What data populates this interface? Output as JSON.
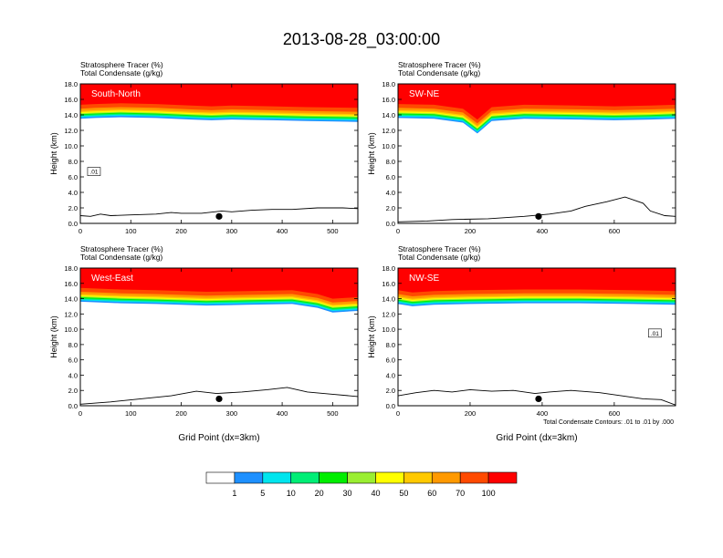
{
  "title": "2013-08-28_03:00:00",
  "chart_data": [
    {
      "type": "heatmap",
      "panel_label": "South-North",
      "subtitle_line1": "Stratosphere Tracer   (%)",
      "subtitle_line2": "Total Condensate   (g/kg)",
      "ylabel": "Height (km)",
      "xlabel": "",
      "xlim": [
        0,
        550
      ],
      "ylim": [
        0,
        18
      ],
      "xticks": [
        "0",
        "100",
        "200",
        "300",
        "400",
        "500"
      ],
      "xtick_values": [
        0,
        100,
        200,
        300,
        400,
        500
      ],
      "yticks": [
        "0.0",
        "2.0",
        "4.0",
        "6.0",
        "8.0",
        "10.0",
        "12.0",
        "14.0",
        "16.0",
        "18.0"
      ],
      "ytick_values": [
        0,
        2,
        4,
        6,
        8,
        10,
        12,
        14,
        16,
        18
      ],
      "marker_x": 275,
      "contour_label": ".01",
      "tracer_base_km": [
        [
          0,
          13.5
        ],
        [
          30,
          13.6
        ],
        [
          80,
          13.7
        ],
        [
          150,
          13.6
        ],
        [
          220,
          13.4
        ],
        [
          260,
          13.3
        ],
        [
          300,
          13.4
        ],
        [
          380,
          13.3
        ],
        [
          450,
          13.2
        ],
        [
          550,
          13.1
        ]
      ],
      "terrain_km": [
        [
          0,
          1.0
        ],
        [
          20,
          0.9
        ],
        [
          40,
          1.2
        ],
        [
          60,
          1.0
        ],
        [
          100,
          1.1
        ],
        [
          150,
          1.2
        ],
        [
          180,
          1.4
        ],
        [
          200,
          1.3
        ],
        [
          240,
          1.3
        ],
        [
          280,
          1.6
        ],
        [
          300,
          1.5
        ],
        [
          340,
          1.7
        ],
        [
          380,
          1.8
        ],
        [
          420,
          1.8
        ],
        [
          470,
          2.0
        ],
        [
          520,
          2.0
        ],
        [
          550,
          1.9
        ]
      ]
    },
    {
      "type": "heatmap",
      "panel_label": "SW-NE",
      "subtitle_line1": "Stratosphere Tracer   (%)",
      "subtitle_line2": "Total Condensate   (g/kg)",
      "ylabel": "Height (km)",
      "xlabel": "",
      "xlim": [
        0,
        770
      ],
      "ylim": [
        0,
        18
      ],
      "xticks": [
        "0",
        "200",
        "400",
        "600"
      ],
      "xtick_values": [
        0,
        200,
        400,
        600
      ],
      "yticks": [
        "0.0",
        "2.0",
        "4.0",
        "6.0",
        "8.0",
        "10.0",
        "12.0",
        "14.0",
        "16.0",
        "18.0"
      ],
      "ytick_values": [
        0,
        2,
        4,
        6,
        8,
        10,
        12,
        14,
        16,
        18
      ],
      "marker_x": 390,
      "contour_label": "",
      "tracer_base_km": [
        [
          0,
          13.6
        ],
        [
          100,
          13.5
        ],
        [
          180,
          13.0
        ],
        [
          220,
          11.6
        ],
        [
          260,
          13.2
        ],
        [
          350,
          13.5
        ],
        [
          500,
          13.4
        ],
        [
          600,
          13.3
        ],
        [
          700,
          13.4
        ],
        [
          770,
          13.5
        ]
      ],
      "terrain_km": [
        [
          0,
          0.2
        ],
        [
          80,
          0.3
        ],
        [
          150,
          0.5
        ],
        [
          250,
          0.6
        ],
        [
          350,
          0.9
        ],
        [
          420,
          1.2
        ],
        [
          480,
          1.6
        ],
        [
          520,
          2.2
        ],
        [
          580,
          2.8
        ],
        [
          630,
          3.4
        ],
        [
          680,
          2.6
        ],
        [
          700,
          1.6
        ],
        [
          740,
          1.0
        ],
        [
          770,
          0.9
        ]
      ]
    },
    {
      "type": "heatmap",
      "panel_label": "West-East",
      "subtitle_line1": "Stratosphere Tracer   (%)",
      "subtitle_line2": "Total Condensate   (g/kg)",
      "ylabel": "Height (km)",
      "xlabel": "Grid Point (dx=3km)",
      "xlim": [
        0,
        550
      ],
      "ylim": [
        0,
        18
      ],
      "xticks": [
        "0",
        "100",
        "200",
        "300",
        "400",
        "500"
      ],
      "xtick_values": [
        0,
        100,
        200,
        300,
        400,
        500
      ],
      "yticks": [
        "0.0",
        "2.0",
        "4.0",
        "6.0",
        "8.0",
        "10.0",
        "12.0",
        "14.0",
        "16.0",
        "18.0"
      ],
      "ytick_values": [
        0,
        2,
        4,
        6,
        8,
        10,
        12,
        14,
        16,
        18
      ],
      "marker_x": 275,
      "contour_label": "",
      "tracer_base_km": [
        [
          0,
          13.6
        ],
        [
          80,
          13.4
        ],
        [
          150,
          13.3
        ],
        [
          250,
          13.1
        ],
        [
          330,
          13.2
        ],
        [
          420,
          13.3
        ],
        [
          470,
          12.8
        ],
        [
          500,
          12.2
        ],
        [
          550,
          12.4
        ]
      ],
      "terrain_km": [
        [
          0,
          0.2
        ],
        [
          60,
          0.5
        ],
        [
          120,
          0.9
        ],
        [
          180,
          1.3
        ],
        [
          230,
          1.9
        ],
        [
          270,
          1.6
        ],
        [
          320,
          1.8
        ],
        [
          370,
          2.1
        ],
        [
          410,
          2.4
        ],
        [
          450,
          1.8
        ],
        [
          500,
          1.5
        ],
        [
          550,
          1.2
        ]
      ]
    },
    {
      "type": "heatmap",
      "panel_label": "NW-SE",
      "subtitle_line1": "Stratosphere Tracer   (%)",
      "subtitle_line2": "Total Condensate   (g/kg)",
      "ylabel": "Height (km)",
      "xlabel": "Grid Point (dx=3km)",
      "xlim": [
        0,
        770
      ],
      "ylim": [
        0,
        18
      ],
      "xticks": [
        "0",
        "200",
        "400",
        "600"
      ],
      "xtick_values": [
        0,
        200,
        400,
        600
      ],
      "yticks": [
        "0.0",
        "2.0",
        "4.0",
        "6.0",
        "8.0",
        "10.0",
        "12.0",
        "14.0",
        "16.0",
        "18.0"
      ],
      "ytick_values": [
        0,
        2,
        4,
        6,
        8,
        10,
        12,
        14,
        16,
        18
      ],
      "marker_x": 390,
      "contour_label": ".01",
      "tracer_base_km": [
        [
          0,
          13.3
        ],
        [
          40,
          13.0
        ],
        [
          100,
          13.2
        ],
        [
          200,
          13.3
        ],
        [
          350,
          13.4
        ],
        [
          500,
          13.4
        ],
        [
          650,
          13.3
        ],
        [
          770,
          13.2
        ]
      ],
      "terrain_km": [
        [
          0,
          1.3
        ],
        [
          50,
          1.7
        ],
        [
          100,
          2.0
        ],
        [
          150,
          1.8
        ],
        [
          200,
          2.1
        ],
        [
          260,
          1.9
        ],
        [
          320,
          2.0
        ],
        [
          380,
          1.6
        ],
        [
          420,
          1.8
        ],
        [
          480,
          2.0
        ],
        [
          560,
          1.7
        ],
        [
          620,
          1.3
        ],
        [
          680,
          0.9
        ],
        [
          730,
          0.8
        ],
        [
          770,
          0.1
        ]
      ]
    }
  ],
  "colorbar": {
    "labels": [
      "1",
      "5",
      "10",
      "20",
      "30",
      "40",
      "50",
      "60",
      "70",
      "100"
    ],
    "colors": [
      "#ffffff",
      "#1e90ff",
      "#00e5ee",
      "#00ee76",
      "#00ee00",
      "#9aee32",
      "#ffff00",
      "#ffc900",
      "#ff9900",
      "#ff4a00",
      "#ff0000"
    ]
  },
  "contour_note": "Total Condensate Contours: .01 to .01 by .000"
}
